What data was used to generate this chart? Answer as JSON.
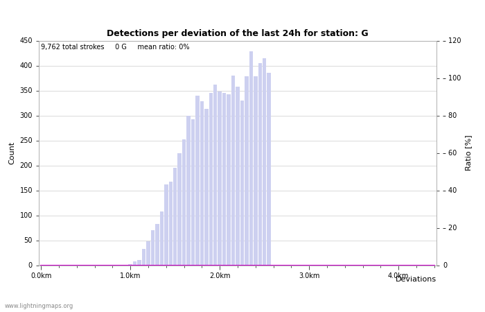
{
  "title": "Detections per deviation of the last 24h for station: G",
  "subtitle": "9,762 total strokes     0 G     mean ratio: 0%",
  "ylabel_left": "Count",
  "ylabel_right": "Ratio [%]",
  "xlabel": "Deviations",
  "watermark": "www.lightningmaps.org",
  "ylim_left": [
    0,
    450
  ],
  "ylim_right": [
    0,
    120
  ],
  "yticks_left": [
    0,
    50,
    100,
    150,
    200,
    250,
    300,
    350,
    400,
    450
  ],
  "yticks_right": [
    0,
    20,
    40,
    60,
    80,
    100,
    120
  ],
  "xtick_labels": [
    "0.0km",
    "1.0km",
    "2.0km",
    "3.0km",
    "4.0km"
  ],
  "bar_color_light": "#cdd0f0",
  "bar_color_dark": "#5555cc",
  "line_color": "#cc00cc",
  "background_color": "#ffffff",
  "grid_color": "#cccccc",
  "counts": [
    0,
    0,
    0,
    0,
    0,
    0,
    0,
    0,
    0,
    0,
    0,
    0,
    0,
    0,
    0,
    0,
    0,
    0,
    0,
    0,
    2,
    8,
    10,
    32,
    48,
    70,
    82,
    108,
    162,
    168,
    195,
    225,
    252,
    300,
    292,
    340,
    328,
    313,
    345,
    362,
    348,
    345,
    343,
    380,
    358,
    330,
    378,
    428,
    378,
    405,
    415,
    385,
    0,
    0,
    0,
    0,
    0,
    0,
    0,
    0,
    0,
    0,
    0,
    0,
    0,
    0,
    0,
    0,
    0,
    0,
    0,
    0,
    0,
    0,
    0,
    0,
    0,
    0,
    0,
    0,
    0,
    0,
    0,
    0,
    0,
    0,
    0,
    0,
    0,
    0
  ],
  "station_counts": [
    0,
    0,
    0,
    0,
    0,
    0,
    0,
    0,
    0,
    0,
    0,
    0,
    0,
    0,
    0,
    0,
    0,
    0,
    0,
    0,
    0,
    0,
    0,
    0,
    0,
    0,
    0,
    0,
    0,
    0,
    0,
    0,
    0,
    0,
    0,
    0,
    0,
    0,
    0,
    0,
    0,
    0,
    0,
    0,
    0,
    0,
    0,
    0,
    0,
    0,
    0,
    0,
    0,
    0,
    0,
    0,
    0,
    0,
    0,
    0,
    0,
    0,
    0,
    0,
    0,
    0,
    0,
    0,
    0,
    0,
    0,
    0,
    0,
    0,
    0,
    0,
    0,
    0,
    0,
    0,
    0,
    0,
    0,
    0,
    0,
    0,
    0,
    0,
    0
  ],
  "percentage": [
    0,
    0,
    0,
    0,
    0,
    0,
    0,
    0,
    0,
    0,
    0,
    0,
    0,
    0,
    0,
    0,
    0,
    0,
    0,
    0,
    0,
    0,
    0,
    0,
    0,
    0,
    0,
    0,
    0,
    0,
    0,
    0,
    0,
    0,
    0,
    0,
    0,
    0,
    0,
    0,
    0,
    0,
    0,
    0,
    0,
    0,
    0,
    0,
    0,
    0,
    0,
    0,
    0,
    0,
    0,
    0,
    0,
    0,
    0,
    0,
    0,
    0,
    0,
    0,
    0,
    0,
    0,
    0,
    0,
    0,
    0,
    0,
    0,
    0,
    0,
    0,
    0,
    0,
    0,
    0,
    0,
    0,
    0,
    0,
    0,
    0,
    0,
    0,
    0
  ],
  "n_bins": 89,
  "bin_size_m": 50,
  "xtick_positions_m": [
    0,
    1000,
    2000,
    3000,
    4000
  ]
}
